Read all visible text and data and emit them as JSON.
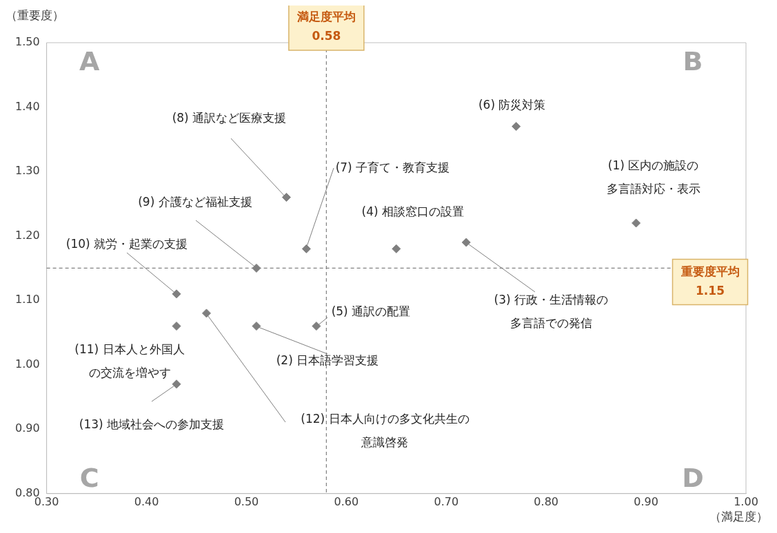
{
  "chart_data": {
    "type": "scatter",
    "xlabel": "（満足度）",
    "ylabel": "（重要度）",
    "xlim": [
      0.3,
      1.0
    ],
    "xticks": [
      {
        "value": 0.3,
        "label": "0.30"
      },
      {
        "value": 0.4,
        "label": "0.40"
      },
      {
        "value": 0.5,
        "label": "0.50"
      },
      {
        "value": 0.6,
        "label": "0.60"
      },
      {
        "value": 0.7,
        "label": "0.70"
      },
      {
        "value": 0.8,
        "label": "0.80"
      },
      {
        "value": 0.9,
        "label": "0.90"
      },
      {
        "value": 1.0,
        "label": "1.00"
      }
    ],
    "ylim": [
      0.8,
      1.5
    ],
    "yticks": [
      {
        "value": 0.8,
        "label": "0.80"
      },
      {
        "value": 0.9,
        "label": "0.90"
      },
      {
        "value": 1.0,
        "label": "1.00"
      },
      {
        "value": 1.1,
        "label": "1.10"
      },
      {
        "value": 1.2,
        "label": "1.20"
      },
      {
        "value": 1.3,
        "label": "1.30"
      },
      {
        "value": 1.4,
        "label": "1.40"
      },
      {
        "value": 1.5,
        "label": "1.50"
      }
    ],
    "grid": false,
    "marker": "diamond",
    "x": [
      0.89,
      0.51,
      0.72,
      0.65,
      0.57,
      0.77,
      0.56,
      0.54,
      0.51,
      0.43,
      0.43,
      0.46,
      0.43
    ],
    "values": [
      1.22,
      1.06,
      1.19,
      1.18,
      1.06,
      1.37,
      1.18,
      1.26,
      1.15,
      1.11,
      1.06,
      1.08,
      0.97
    ],
    "color": "#7f7f7f",
    "ref_lines": [
      {
        "axis": "x",
        "value": 0.58,
        "label": "満足度平均\n0.58",
        "color": "#808080",
        "line_style": "dashed"
      },
      {
        "axis": "y",
        "value": 1.15,
        "label": "重要度平均\n1.15",
        "color": "#808080",
        "line_style": "dashed"
      }
    ],
    "annotations": [
      {
        "text": "(1) 区内の施設の多言語対応・表示",
        "x": 0.89,
        "y": 1.22
      },
      {
        "text": "(2) 日本語学習支援",
        "x": 0.51,
        "y": 1.06
      },
      {
        "text": "(3) 行政・生活情報の多言語での発信",
        "x": 0.72,
        "y": 1.19
      },
      {
        "text": "(4) 相談窓口の設置",
        "x": 0.65,
        "y": 1.18
      },
      {
        "text": "(5) 通訳の配置",
        "x": 0.57,
        "y": 1.06
      },
      {
        "text": "(6) 防災対策",
        "x": 0.77,
        "y": 1.37
      },
      {
        "text": "(7) 子育て・教育支援",
        "x": 0.56,
        "y": 1.18
      },
      {
        "text": "(8) 通訳など医療支援",
        "x": 0.54,
        "y": 1.26
      },
      {
        "text": "(9) 介護など福祉支援",
        "x": 0.51,
        "y": 1.15
      },
      {
        "text": "(10) 就労・起業の支援",
        "x": 0.43,
        "y": 1.11
      },
      {
        "text": "(11) 日本人と外国人の交流を増やす",
        "x": 0.43,
        "y": 1.06
      },
      {
        "text": "(12) 日本人向けの多文化共生の意識啓発",
        "x": 0.46,
        "y": 1.08
      },
      {
        "text": "(13) 地域社会への参加支援",
        "x": 0.43,
        "y": 0.97
      },
      "A",
      "B",
      "C",
      "D"
    ]
  }
}
